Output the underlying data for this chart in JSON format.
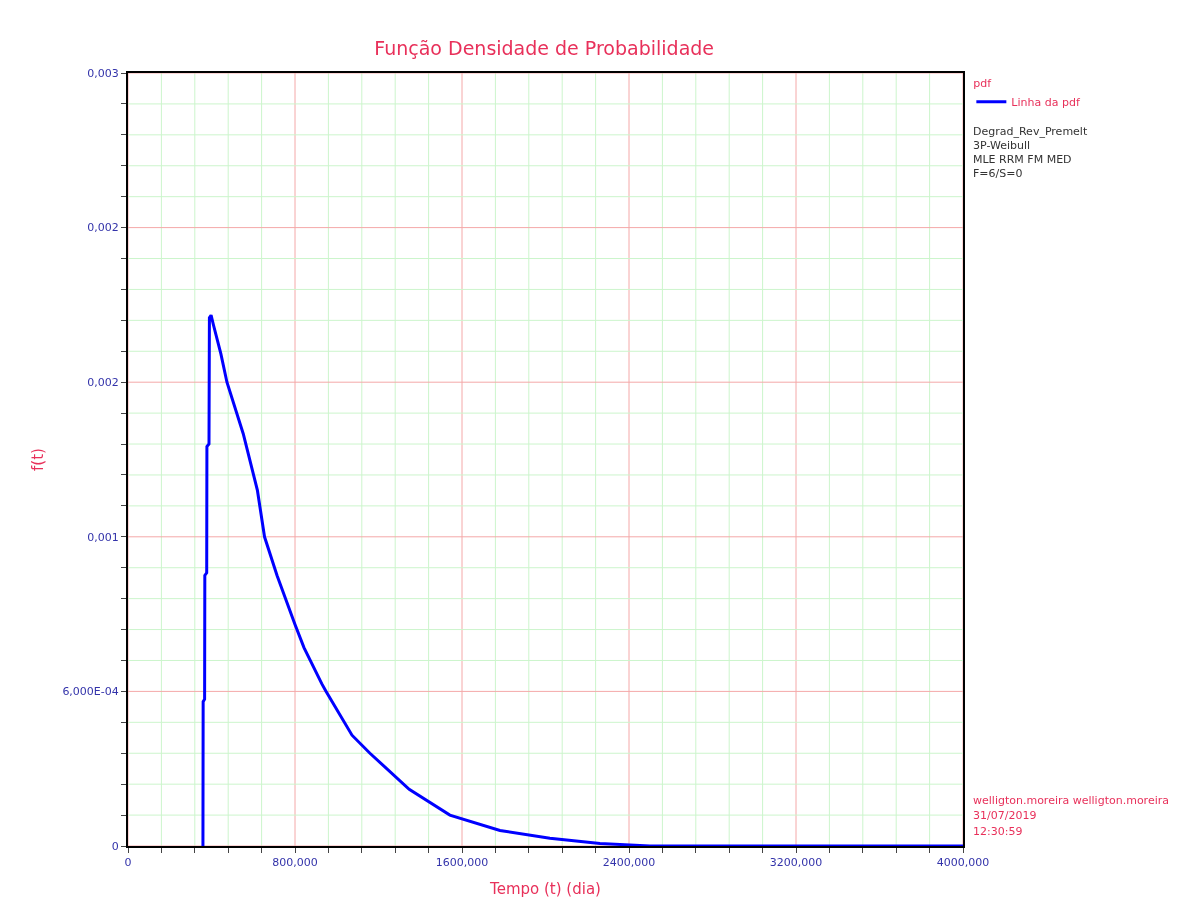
{
  "chart_data": {
    "type": "line",
    "title": "Função Densidade de Probabilidade",
    "xlabel": "Tempo (t) (dia)",
    "ylabel": "f(t)",
    "legend_title": "pdf",
    "annotations": [
      "Degrad_Rev_Premelt",
      "3P-Weibull",
      "MLE RRM FM MED",
      "F=6/S=0",
      "welligton.moreira welligton.moreira",
      "31/07/2019",
      "12:30:59"
    ],
    "series": [
      {
        "name": "Linha da pdf",
        "color": "#0000ff",
        "x": [
          359,
          360,
          367,
          368,
          377,
          378,
          388,
          390,
          398,
          410,
          445,
          474,
          552,
          620,
          654,
          714,
          800,
          843,
          928,
          949,
          1073,
          1159,
          1347,
          1542,
          1782,
          2021,
          2261,
          2500,
          2740,
          4000
        ],
        "values": [
          0,
          0.00056,
          0.00057,
          0.00105,
          0.00106,
          0.00155,
          0.00156,
          0.00205,
          0.00206,
          0.00202,
          0.00191,
          0.0018,
          0.0016,
          0.00138,
          0.0012,
          0.00105,
          0.00086,
          0.00077,
          0.00063,
          0.0006,
          0.00043,
          0.00036,
          0.00022,
          0.00012,
          6e-05,
          3e-05,
          1e-05,
          0,
          0,
          0
        ]
      }
    ],
    "xlim": [
      0,
      4000
    ],
    "xticks": [
      0,
      {
        "value": 160,
        "label": null
      },
      {
        "value": 320,
        "label": null
      },
      {
        "value": 480,
        "label": null
      },
      {
        "value": 640,
        "label": null
      },
      {
        "value": 800,
        "label": "800,000"
      },
      {
        "value": 960,
        "label": null
      },
      {
        "value": 1120,
        "label": null
      },
      {
        "value": 1280,
        "label": null
      },
      {
        "value": 1440,
        "label": null
      },
      {
        "value": 1600,
        "label": "1600,000"
      },
      {
        "value": 1760,
        "label": null
      },
      {
        "value": 1920,
        "label": null
      },
      {
        "value": 2080,
        "label": null
      },
      {
        "value": 2240,
        "label": null
      },
      {
        "value": 2400,
        "label": "2400,000"
      },
      {
        "value": 2560,
        "label": null
      },
      {
        "value": 2720,
        "label": null
      },
      {
        "value": 2880,
        "label": null
      },
      {
        "value": 3040,
        "label": null
      },
      {
        "value": 3200,
        "label": "3200,000"
      },
      {
        "value": 3360,
        "label": null
      },
      {
        "value": 3520,
        "label": null
      },
      {
        "value": 3680,
        "label": null
      },
      {
        "value": 3840,
        "label": null
      },
      {
        "value": 4000,
        "label": "4000,000"
      }
    ],
    "ylim": [
      0,
      0.003
    ],
    "yticks": [
      0,
      {
        "value": 0.00012,
        "label": null
      },
      {
        "value": 0.00024,
        "label": null
      },
      {
        "value": 0.00036,
        "label": null
      },
      {
        "value": 0.00048,
        "label": null
      },
      {
        "value": 0.0006,
        "label": "6,000E-04"
      },
      {
        "value": 0.00072,
        "label": null
      },
      {
        "value": 0.00084,
        "label": null
      },
      {
        "value": 0.00096,
        "label": null
      },
      {
        "value": 0.00108,
        "label": null
      },
      {
        "value": 0.0012,
        "label": "0,001"
      },
      {
        "value": 0.00132,
        "label": null
      },
      {
        "value": 0.00144,
        "label": null
      },
      {
        "value": 0.00156,
        "label": null
      },
      {
        "value": 0.00168,
        "label": null
      },
      {
        "value": 0.0018,
        "label": "0,002"
      },
      {
        "value": 0.00192,
        "label": null
      },
      {
        "value": 0.00204,
        "label": null
      },
      {
        "value": 0.00216,
        "label": null
      },
      {
        "value": 0.00228,
        "label": null
      },
      {
        "value": 0.0024,
        "label": "0,002"
      },
      {
        "value": 0.00252,
        "label": null
      },
      {
        "value": 0.00264,
        "label": null
      },
      {
        "value": 0.00276,
        "label": null
      },
      {
        "value": 0.00288,
        "label": null
      },
      {
        "value": 0.003,
        "label": "0,003"
      }
    ],
    "grid": true,
    "legend": "top right",
    "marker": "none",
    "line_style": "solid"
  }
}
